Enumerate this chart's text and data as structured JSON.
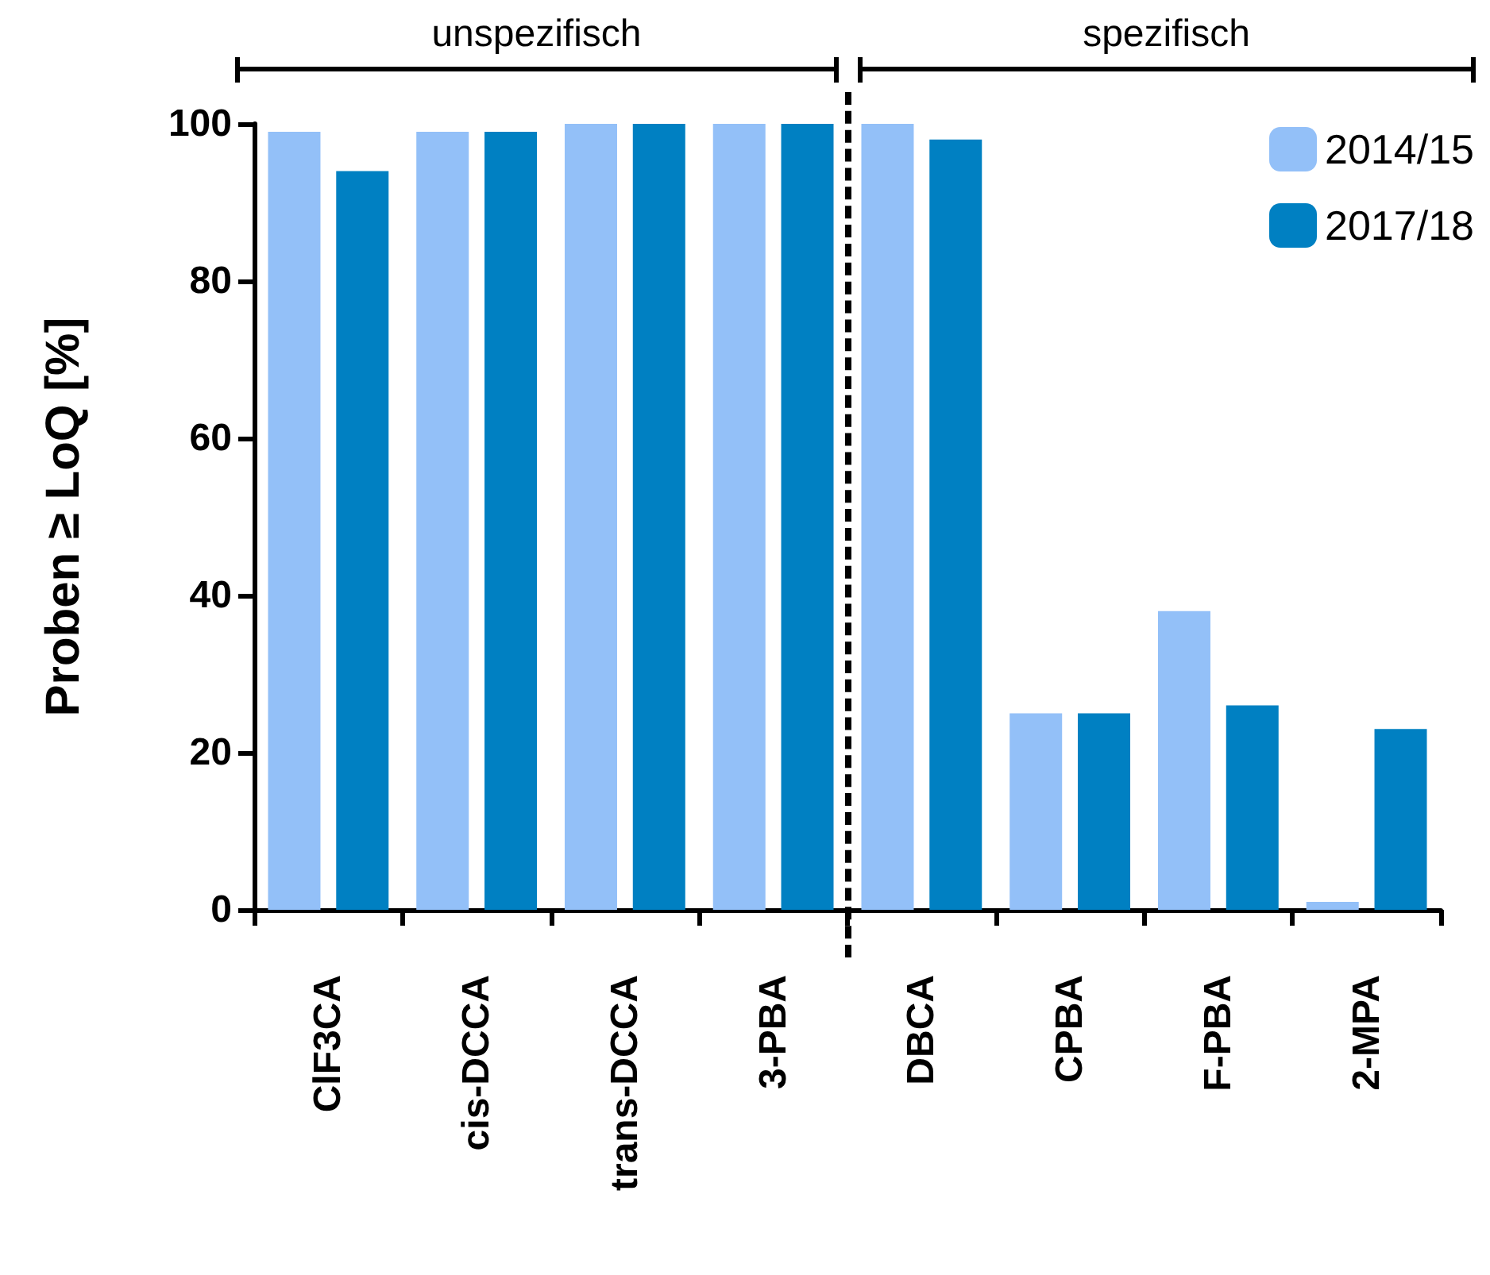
{
  "chart_data": {
    "type": "bar",
    "ylabel": "Proben ≥ LoQ [%]",
    "categories": [
      "ClF3CA",
      "cis-DCCA",
      "trans-DCCA",
      "3-PBA",
      "DBCA",
      "CPBA",
      "F-PBA",
      "2-MPA"
    ],
    "series": [
      {
        "name": "2014/15",
        "color": "#93c0f8",
        "values": [
          99,
          99,
          100,
          100,
          100,
          25,
          38,
          1
        ]
      },
      {
        "name": "2017/18",
        "color": "#0080c2",
        "values": [
          94,
          99,
          100,
          100,
          98,
          25,
          26,
          23
        ]
      }
    ],
    "ylim": [
      0,
      100
    ],
    "yticks": [
      0,
      20,
      40,
      60,
      80,
      100
    ],
    "grid": false,
    "legend": "top right",
    "annotations": [
      "unspezifisch",
      "spezifisch"
    ]
  }
}
